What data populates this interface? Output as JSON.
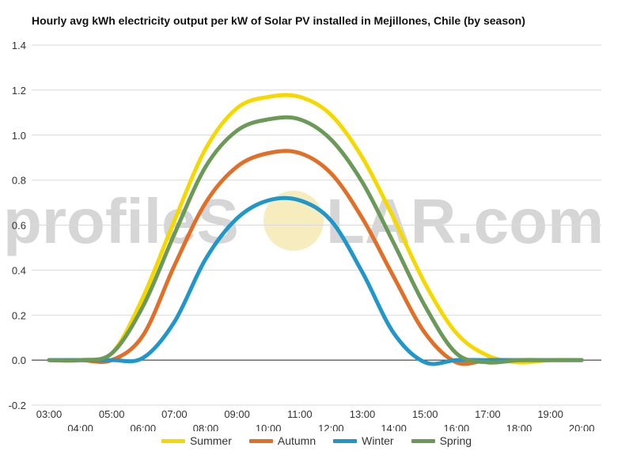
{
  "chart_data": {
    "type": "line",
    "title": "Hourly avg kWh electricity output per kW of Solar PV installed in Mejillones, Chile (by season)",
    "xlabel": "",
    "ylabel": "",
    "ylim": [
      -0.2,
      1.4
    ],
    "yticks": [
      "-0.2",
      "0.0",
      "0.2",
      "0.4",
      "0.6",
      "0.8",
      "1.0",
      "1.2",
      "1.4"
    ],
    "yticks_values": [
      -0.2,
      0.0,
      0.2,
      0.4,
      0.6,
      0.8,
      1.0,
      1.2,
      1.4
    ],
    "x": [
      "03:00",
      "04:00",
      "05:00",
      "06:00",
      "07:00",
      "08:00",
      "09:00",
      "10:00",
      "11:00",
      "12:00",
      "13:00",
      "14:00",
      "15:00",
      "16:00",
      "17:00",
      "18:00",
      "19:00",
      "20:00"
    ],
    "grid": true,
    "legend_position": "bottom",
    "series": [
      {
        "name": "Summer",
        "color": "#f5d800",
        "values": [
          0.0,
          0.0,
          0.03,
          0.28,
          0.62,
          0.94,
          1.12,
          1.17,
          1.17,
          1.09,
          0.9,
          0.63,
          0.34,
          0.12,
          0.02,
          -0.01,
          0.0,
          0.0
        ]
      },
      {
        "name": "Autumn",
        "color": "#e07028",
        "values": [
          0.0,
          0.0,
          0.0,
          0.11,
          0.42,
          0.7,
          0.86,
          0.92,
          0.92,
          0.83,
          0.63,
          0.37,
          0.12,
          -0.01,
          0.0,
          0.0,
          0.0,
          0.0
        ]
      },
      {
        "name": "Winter",
        "color": "#2196c8",
        "values": [
          0.0,
          0.0,
          0.0,
          0.01,
          0.17,
          0.45,
          0.63,
          0.71,
          0.71,
          0.62,
          0.39,
          0.12,
          -0.01,
          0.0,
          0.0,
          0.0,
          0.0,
          0.0
        ]
      },
      {
        "name": "Spring",
        "color": "#6b9a58",
        "values": [
          0.0,
          0.0,
          0.03,
          0.24,
          0.56,
          0.86,
          1.02,
          1.07,
          1.07,
          0.98,
          0.79,
          0.52,
          0.24,
          0.03,
          -0.01,
          0.0,
          0.0,
          0.0
        ]
      }
    ]
  },
  "watermark": {
    "text_left": "profileS",
    "text_right": "LAR.com"
  },
  "colors": {
    "gridline": "#d9d9d9",
    "zero_line": "#222222",
    "watermark_text": "#d6d6d6",
    "watermark_sun": "#f7ecbe"
  }
}
